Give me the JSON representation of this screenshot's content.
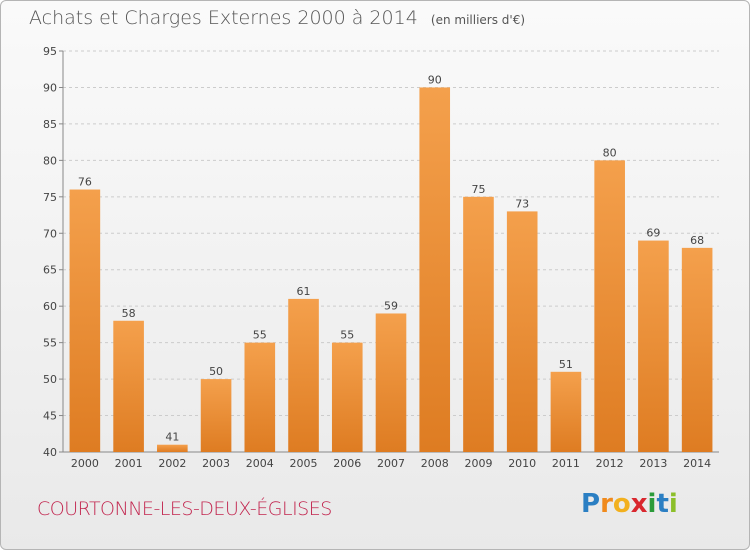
{
  "title": "Achats et Charges Externes 2000 à 2014",
  "unit_note": "(en milliers d'€)",
  "commune": "COURTONNE-LES-DEUX-ÉGLISES",
  "logo": {
    "letters": [
      "P",
      "r",
      "o",
      "x",
      "i",
      "t",
      "i"
    ],
    "colors": [
      "#2b7fc3",
      "#f08a1c",
      "#f2b01e",
      "#d9272e",
      "#2b9b3a",
      "#2b7fc3",
      "#8cbf2a"
    ]
  },
  "colors": {
    "bar_light": "#f4a04c",
    "bar_dark": "#de7c22",
    "grid": "#cccccc",
    "commune": "#c2264f"
  },
  "chart_data": {
    "type": "bar",
    "categories": [
      "2000",
      "2001",
      "2002",
      "2003",
      "2004",
      "2005",
      "2006",
      "2007",
      "2008",
      "2009",
      "2010",
      "2011",
      "2012",
      "2013",
      "2014"
    ],
    "values": [
      76,
      58,
      41,
      50,
      55,
      61,
      55,
      59,
      90,
      75,
      73,
      51,
      80,
      69,
      68
    ],
    "ylim": [
      40,
      95
    ],
    "yticks": [
      40,
      45,
      50,
      55,
      60,
      65,
      70,
      75,
      80,
      85,
      90,
      95
    ],
    "grid": true,
    "xlabel": "",
    "ylabel": ""
  }
}
